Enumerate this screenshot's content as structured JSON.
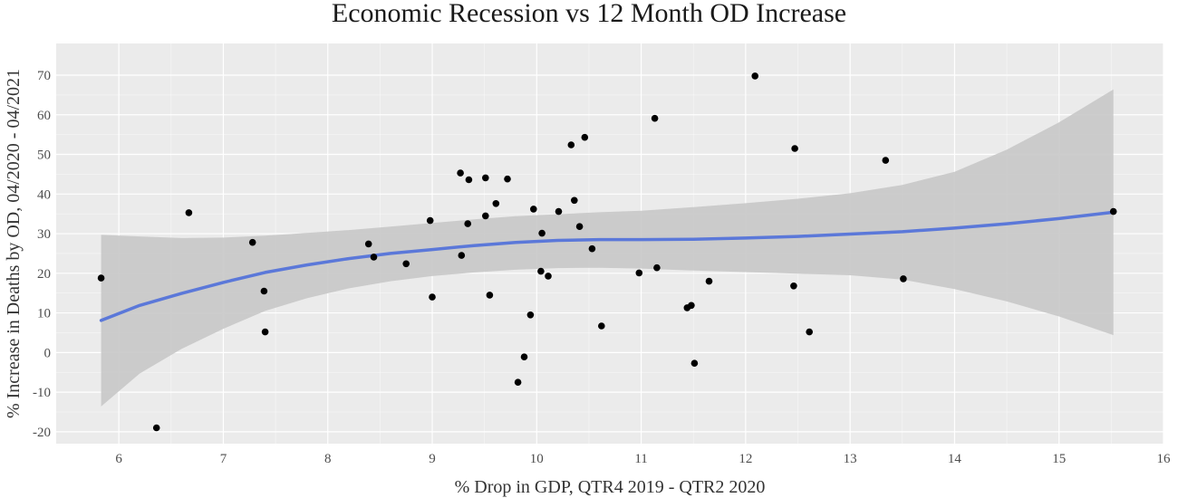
{
  "chart_data": {
    "type": "scatter",
    "title": "Economic Recession vs 12 Month OD Increase",
    "xlabel": "% Drop in GDP, QTR4 2019 - QTR2 2020",
    "ylabel": "% Increase in Deaths by OD, 04/2020 - 04/2021",
    "xlim": [
      5.4,
      16.0
    ],
    "ylim": [
      -23,
      78
    ],
    "xticks": [
      6,
      7,
      8,
      9,
      10,
      11,
      12,
      13,
      14,
      15,
      16
    ],
    "yticks": [
      -20,
      -10,
      0,
      10,
      20,
      30,
      40,
      50,
      60,
      70
    ],
    "grid": true,
    "colors": {
      "panel_background": "#ebebeb",
      "grid": "#ffffff",
      "point": "#000000",
      "smooth_line": "#5b78d9",
      "confidence_band": "#c8c8c8"
    },
    "points": {
      "x": [
        5.83,
        6.36,
        6.67,
        7.28,
        7.39,
        7.4,
        8.39,
        8.44,
        8.75,
        8.98,
        9.0,
        9.27,
        9.28,
        9.34,
        9.35,
        9.51,
        9.51,
        9.55,
        9.61,
        9.72,
        9.82,
        9.88,
        9.94,
        9.97,
        10.04,
        10.05,
        10.11,
        10.21,
        10.33,
        10.36,
        10.41,
        10.46,
        10.53,
        10.62,
        10.98,
        11.13,
        11.15,
        11.44,
        11.48,
        11.51,
        11.65,
        12.09,
        12.46,
        12.47,
        12.61,
        13.34,
        13.51,
        15.52
      ],
      "y": [
        18.8,
        -19.0,
        35.3,
        27.8,
        15.5,
        5.2,
        27.4,
        24.1,
        22.4,
        33.3,
        14.0,
        45.3,
        24.5,
        32.5,
        43.6,
        34.5,
        44.1,
        14.5,
        37.6,
        43.8,
        -7.5,
        -1.1,
        9.5,
        36.2,
        20.5,
        30.1,
        19.3,
        35.6,
        52.4,
        38.4,
        31.8,
        54.3,
        26.2,
        6.7,
        20.1,
        59.1,
        21.4,
        11.3,
        11.9,
        -2.7,
        18.0,
        69.8,
        16.8,
        51.5,
        5.2,
        48.5,
        18.6,
        35.6
      ]
    },
    "smooth": {
      "x": [
        5.83,
        6.2,
        6.6,
        7.0,
        7.4,
        7.8,
        8.2,
        8.6,
        9.0,
        9.4,
        9.8,
        10.2,
        10.6,
        11.0,
        11.5,
        12.0,
        12.5,
        13.0,
        13.5,
        14.0,
        14.5,
        15.0,
        15.52
      ],
      "y": [
        8.1,
        11.9,
        14.9,
        17.7,
        20.2,
        22.1,
        23.7,
        25.0,
        26.0,
        27.0,
        27.8,
        28.3,
        28.5,
        28.5,
        28.6,
        28.9,
        29.3,
        29.9,
        30.5,
        31.4,
        32.5,
        33.8,
        35.4
      ],
      "upper": [
        29.7,
        29.3,
        28.9,
        29.0,
        29.5,
        30.2,
        30.9,
        31.8,
        32.7,
        33.6,
        34.4,
        34.9,
        35.4,
        35.8,
        36.7,
        37.7,
        38.8,
        40.2,
        42.3,
        45.6,
        51.2,
        58.1,
        66.4
      ],
      "lower": [
        -13.6,
        -5.3,
        0.9,
        6.0,
        10.5,
        13.7,
        16.2,
        18.0,
        19.3,
        20.2,
        20.9,
        21.3,
        21.4,
        21.2,
        20.7,
        20.3,
        19.9,
        19.5,
        18.4,
        16.0,
        12.9,
        9.1,
        4.4
      ]
    }
  }
}
